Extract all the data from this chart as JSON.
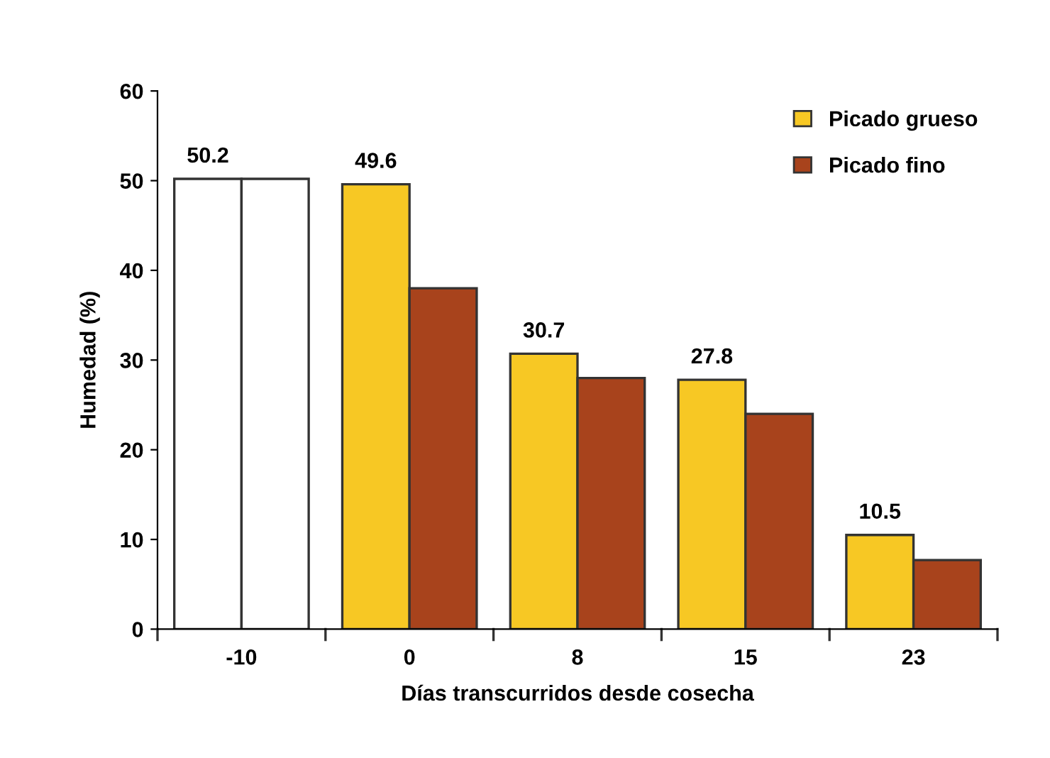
{
  "chart_data": {
    "type": "bar",
    "xlabel": "Días transcurridos desde cosecha",
    "ylabel": "Humedad (%)",
    "categories": [
      "-10",
      "0",
      "8",
      "15",
      "23"
    ],
    "series": [
      {
        "name": "Picado grueso",
        "color": "#f7c824",
        "colors": [
          "#ffffff",
          "#f7c824",
          "#f7c824",
          "#f7c824",
          "#f7c824"
        ],
        "values": [
          50.2,
          49.6,
          30.7,
          27.8,
          10.5
        ],
        "value_labels": [
          "50.2",
          "49.6",
          "30.7",
          "27.8",
          "10.5"
        ]
      },
      {
        "name": "Picado fino",
        "color": "#a8431c",
        "colors": [
          "#ffffff",
          "#a8431c",
          "#a8431c",
          "#a8431c",
          "#a8431c"
        ],
        "values": [
          50.2,
          38,
          28,
          24,
          7.7
        ]
      }
    ],
    "ylim": [
      0,
      60
    ],
    "yticks": [
      0,
      10,
      20,
      30,
      40,
      50,
      60
    ],
    "grid": false,
    "legend": "top right"
  }
}
